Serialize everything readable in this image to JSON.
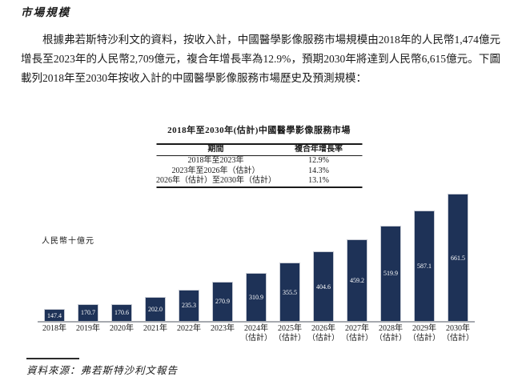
{
  "document": {
    "heading": "市場規模",
    "body_paragraph": "根據弗若斯特沙利文的資料，按收入計，中國醫學影像服務市場規模由2018年的人民幣1,474億元增長至2023年的人民幣2,709億元，複合年增長率為12.9%，預期2030年將達到人民幣6,615億元。下圖載列2018年至2030年按收入計的中國醫學影像服務市場歷史及預測規模：",
    "source_note": "資料來源：弗若斯特沙利文報告"
  },
  "figure": {
    "title": "2018年至2030年(估計)中國醫學影像服務市場",
    "cagr_table": {
      "columns": [
        "期間",
        "複合年增長率"
      ],
      "rows": [
        {
          "period": "2018年至2023年",
          "cagr": "12.9%"
        },
        {
          "period": "2023年至2026年（估計）",
          "cagr": "14.3%"
        },
        {
          "period": "2026年（估計）至2030年（估計）",
          "cagr": "13.1%"
        }
      ]
    }
  },
  "chart_data": {
    "type": "bar",
    "title": "2018年至2030年(估計)中國醫學影像服務市場",
    "xlabel": "",
    "ylabel": "人民幣十億元",
    "categories": [
      "2018年",
      "2019年",
      "2020年",
      "2021年",
      "2022年",
      "2023年",
      "2024年（估計）",
      "2025年（估計）",
      "2026年（估計）",
      "2027年（估計）",
      "2028年（估計）",
      "2029年（估計）",
      "2030年（估計）"
    ],
    "values": [
      147.4,
      170.7,
      170.6,
      202.0,
      235.3,
      270.9,
      310.9,
      355.5,
      404.6,
      459.2,
      519.9,
      587.1,
      661.5
    ],
    "estimate_note": "（估計）",
    "ylim": [
      95,
      680
    ],
    "grid": false,
    "legend": "none",
    "value_labels": "inside-center",
    "bar_color": "#1e3257",
    "bar_border_color": "#c7cbd4",
    "value_label_color": "#ffffff",
    "axis_color": "#a6a9af"
  }
}
